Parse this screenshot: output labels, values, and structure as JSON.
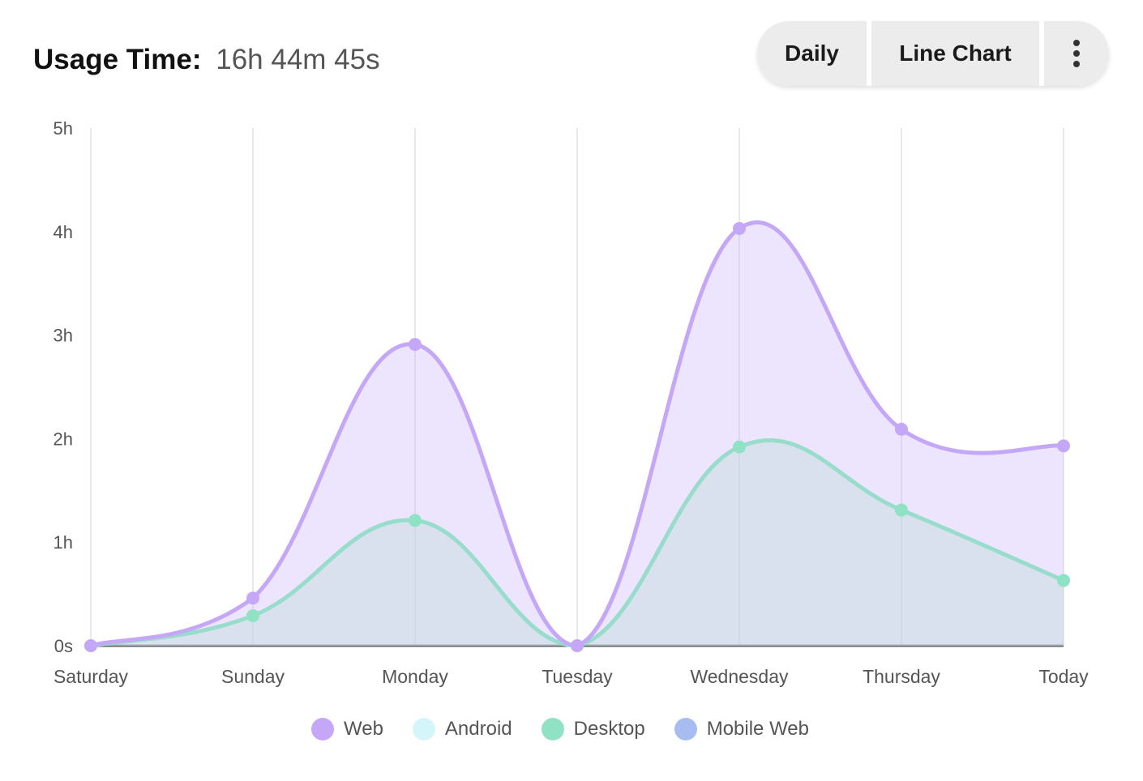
{
  "header": {
    "label": "Usage Time:",
    "value": "16h 44m 45s"
  },
  "controls": {
    "period": "Daily",
    "chart_type": "Line Chart",
    "more_icon": "kebab-menu-icon"
  },
  "chart_data": {
    "type": "area",
    "title": "Usage Time",
    "xlabel": "",
    "ylabel": "",
    "categories": [
      "Saturday",
      "Sunday",
      "Monday",
      "Tuesday",
      "Wednesday",
      "Thursday",
      "Today"
    ],
    "y_ticks": [
      "0s",
      "1h",
      "2h",
      "3h",
      "4h",
      "5h"
    ],
    "ylim_hours": [
      0,
      5
    ],
    "stacked": true,
    "series": [
      {
        "name": "Web",
        "color": "#c4a8f7",
        "values": [
          0.0,
          0.17,
          1.7,
          0.0,
          2.11,
          0.78,
          1.3
        ]
      },
      {
        "name": "Android",
        "color": "#d5f6f9",
        "values": [
          0,
          0,
          0,
          0,
          0,
          0,
          0
        ]
      },
      {
        "name": "Desktop",
        "color": "#8fe3c4",
        "values": [
          0.0,
          0.29,
          1.21,
          0.0,
          1.92,
          1.31,
          0.63
        ]
      },
      {
        "name": "Mobile Web",
        "color": "#a7bdf2",
        "values": [
          0,
          0,
          0,
          0,
          0,
          0,
          0
        ]
      }
    ],
    "totals": [
      0.0,
      0.46,
      2.91,
      0.0,
      4.03,
      2.09,
      1.93
    ],
    "grid": "vertical",
    "legend_position": "bottom-center"
  }
}
